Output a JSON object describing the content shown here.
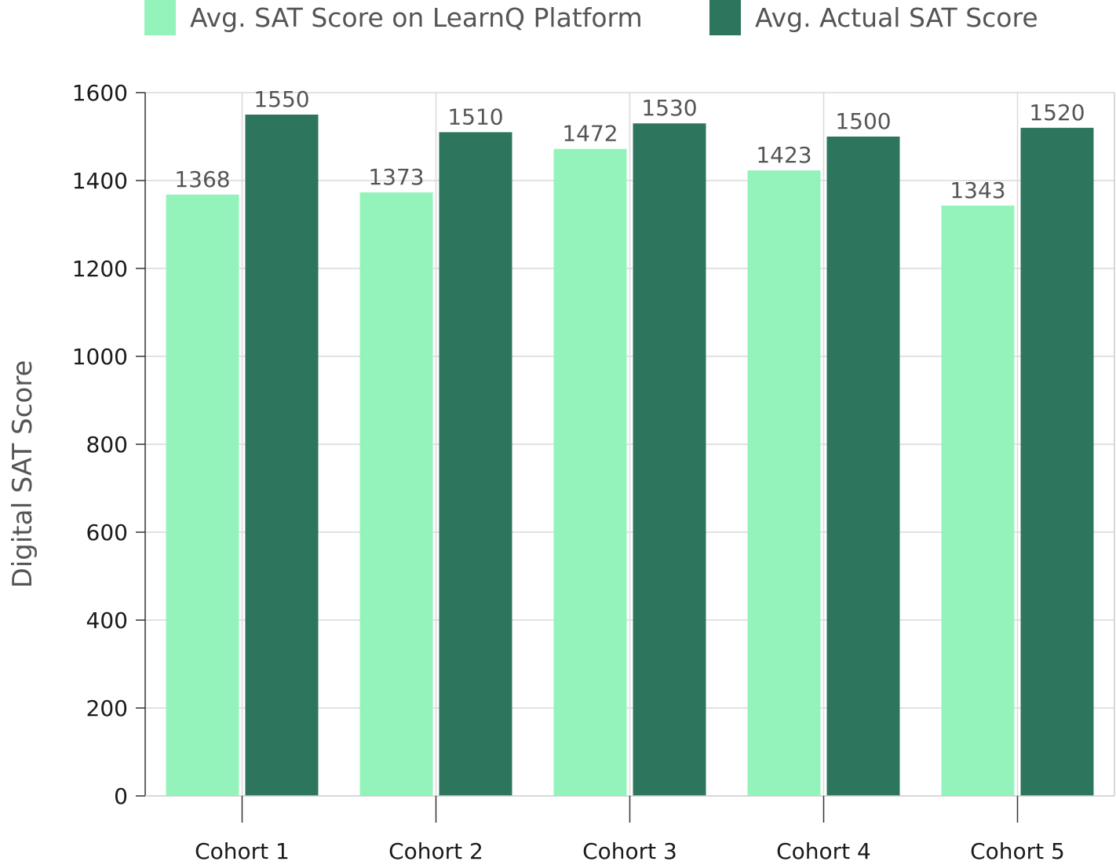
{
  "chart_data": {
    "type": "bar",
    "categories": [
      "Cohort 1",
      "Cohort 2",
      "Cohort 3",
      "Cohort 4",
      "Cohort 5"
    ],
    "series": [
      {
        "name": "Avg. SAT Score on LearnQ Platform",
        "color": "#94f3bb",
        "values": [
          1368,
          1373,
          1472,
          1423,
          1343
        ]
      },
      {
        "name": "Avg. Actual SAT Score",
        "color": "#2e755d",
        "values": [
          1550,
          1510,
          1530,
          1500,
          1520
        ]
      }
    ],
    "title": "",
    "xlabel": "",
    "ylabel": "Digital SAT Score",
    "ylim": [
      0,
      1600
    ],
    "yticks": [
      0,
      200,
      400,
      600,
      800,
      1000,
      1200,
      1400,
      1600
    ],
    "grid": true,
    "legend_position": "top"
  }
}
